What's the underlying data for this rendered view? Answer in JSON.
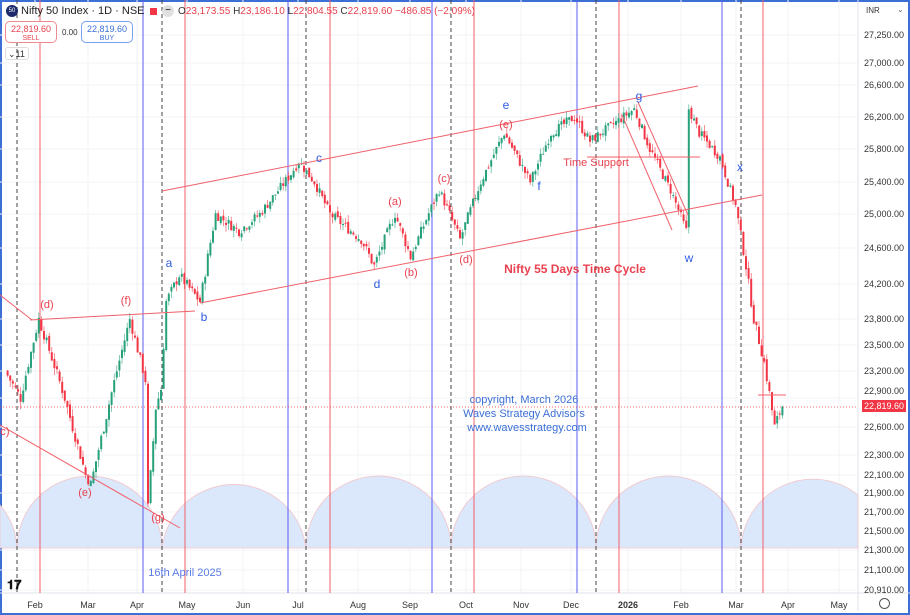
{
  "header": {
    "symbol_icon": "50",
    "title": "Nifty 50 Index · 1D · NSE",
    "ohlc": {
      "o_label": "O",
      "o": "23,173.55",
      "h_label": "H",
      "h": "23,186.10",
      "l_label": "L",
      "l": "22,804.55",
      "c_label": "C",
      "c": "22,819.60",
      "change": "−486.85 (−2.09%)"
    },
    "sell_price": "22,819.60",
    "sell_label": "SELL",
    "spread": "0.00",
    "buy_price": "22,819.60",
    "buy_label": "BUY",
    "indicators_toggle": "11"
  },
  "axis": {
    "currency": "INR",
    "price_ticks": [
      "27,250.00",
      "27,000.00",
      "26,600.00",
      "26,200.00",
      "25,800.00",
      "25,400.00",
      "25,000.00",
      "24,600.00",
      "24,200.00",
      "23,800.00",
      "23,500.00",
      "23,200.00",
      "22,900.00",
      "22,600.00",
      "22,300.00",
      "22,100.00",
      "21,900.00",
      "21,700.00",
      "21,500.00",
      "21,300.00",
      "21,100.00",
      "20,910.00"
    ],
    "current_price": "22,819.60",
    "months": [
      "Feb",
      "Mar",
      "Apr",
      "May",
      "Jun",
      "Jul",
      "Aug",
      "Sep",
      "Oct",
      "Nov",
      "Dec",
      "2026",
      "Feb",
      "Mar",
      "Apr",
      "May"
    ]
  },
  "annotations": {
    "red": [
      "(d)",
      "(f)",
      "(e)",
      "(g)",
      "c)",
      "(c)",
      "(a)",
      "(b)",
      "(d)",
      "(e)",
      "Time Support"
    ],
    "cycle_title": "Nifty 55 Days Time Cycle",
    "blue": [
      "a",
      "b",
      "c",
      "d",
      "e",
      "f",
      "g",
      "w",
      "x"
    ],
    "copyright": [
      "copyright, March 2026",
      "Waves Strategy Advisors",
      "www.wavesstrategy.com"
    ],
    "date_note": "16th April 2025"
  },
  "colors": {
    "up": "#26a17b",
    "down": "#f23645",
    "red_line": "#f0606a",
    "blue_line": "#5b5bf0",
    "cycle_fill": "#dbe8fb"
  },
  "chart_data": {
    "type": "candlestick",
    "title": "Nifty 50 Index · 1D · NSE",
    "ylabel": "INR",
    "ylim": [
      20910,
      27250
    ],
    "x_range": [
      "Jan 2025",
      "May 2026"
    ],
    "price_path_keypoints": [
      [
        0,
        23200
      ],
      [
        6,
        22900
      ],
      [
        13,
        23800
      ],
      [
        23,
        22900
      ],
      [
        31,
        22100
      ],
      [
        33,
        22000
      ],
      [
        38,
        22600
      ],
      [
        48,
        23800
      ],
      [
        54,
        23100
      ],
      [
        55,
        21750
      ],
      [
        58,
        22800
      ],
      [
        60,
        23000
      ],
      [
        62,
        24000
      ],
      [
        67,
        24300
      ],
      [
        75,
        24000
      ],
      [
        81,
        25000
      ],
      [
        90,
        24800
      ],
      [
        98,
        25000
      ],
      [
        110,
        25500
      ],
      [
        113,
        25650
      ],
      [
        119,
        25400
      ],
      [
        125,
        25000
      ],
      [
        137,
        24700
      ],
      [
        142,
        24400
      ],
      [
        150,
        25000
      ],
      [
        156,
        24500
      ],
      [
        167,
        25300
      ],
      [
        175,
        24700
      ],
      [
        183,
        25400
      ],
      [
        192,
        26000
      ],
      [
        202,
        25400
      ],
      [
        210,
        26000
      ],
      [
        219,
        26200
      ],
      [
        225,
        25900
      ],
      [
        242,
        26300
      ],
      [
        248,
        25800
      ],
      [
        256,
        25300
      ],
      [
        262,
        24800
      ],
      [
        263,
        26300
      ],
      [
        267,
        26000
      ],
      [
        275,
        25700
      ],
      [
        281,
        25100
      ],
      [
        285,
        24400
      ],
      [
        288,
        23800
      ],
      [
        292,
        23300
      ],
      [
        296,
        22600
      ],
      [
        299,
        22819.6
      ]
    ],
    "last_close": 22819.6
  }
}
